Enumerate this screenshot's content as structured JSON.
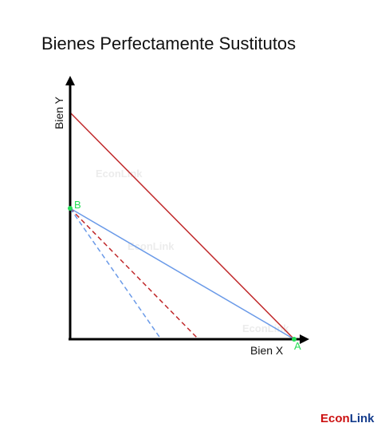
{
  "title": "Bienes Perfectamente Sustitutos",
  "axes": {
    "x_label": "Bien X",
    "y_label": "Bien Y"
  },
  "points": {
    "a_label": "A",
    "b_label": "B"
  },
  "watermark": "EconLink",
  "brand": {
    "econ": "Econ",
    "link": "Link"
  },
  "colors": {
    "red_line": "#c0282a",
    "blue_line": "#6a9ae8",
    "point": "#22dd55",
    "brand_red": "#cc1111",
    "brand_blue": "#143c8c",
    "axis": "#000000"
  }
}
